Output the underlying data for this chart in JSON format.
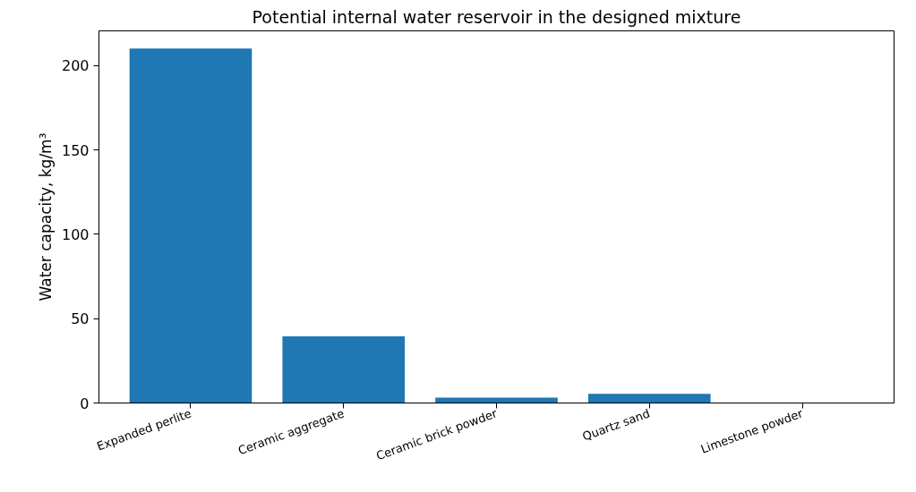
{
  "chart_data": {
    "type": "bar",
    "title": "Potential internal water reservoir in the designed mixture",
    "ylabel": "Water capacity, kg/m³",
    "categories": [
      "Expanded perlite",
      "Ceramic aggregate",
      "Ceramic brick powder",
      "Quartz sand",
      "Limestone powder"
    ],
    "values": [
      210,
      39.5,
      3.2,
      5.4,
      0
    ],
    "color": "#1f77b4",
    "ylim": [
      0,
      220.5
    ],
    "yticks": [
      0,
      50,
      100,
      150,
      200
    ],
    "grid": false
  }
}
